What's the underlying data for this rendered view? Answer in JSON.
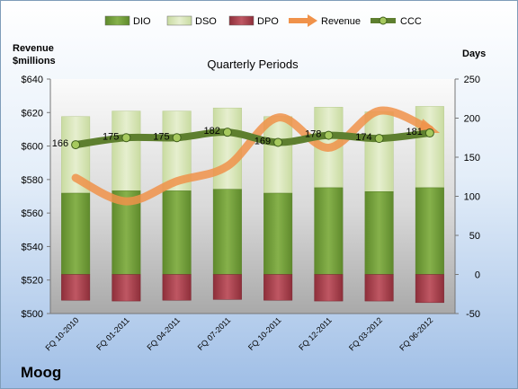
{
  "company": "Moog",
  "chart_data": {
    "type": "bar",
    "title": "Quarterly Periods",
    "left_axis_label": [
      "Revenue",
      "$millions"
    ],
    "right_axis_label": "Days",
    "left_ylim": [
      500,
      640
    ],
    "left_ticks": [
      "$500",
      "$520",
      "$540",
      "$560",
      "$580",
      "$600",
      "$620",
      "$640"
    ],
    "right_ylim": [
      -50,
      250
    ],
    "right_ticks": [
      "-50",
      "0",
      "50",
      "100",
      "150",
      "200",
      "250"
    ],
    "categories": [
      "FQ 10-2010",
      "FQ 01-2011",
      "FQ 04-2011",
      "FQ 07-2011",
      "FQ 10-2011",
      "FQ 12-2011",
      "FQ 03-2012",
      "FQ 06-2012"
    ],
    "legend": [
      "DIO",
      "DSO",
      "DPO",
      "Revenue",
      "CCC"
    ],
    "legend_placement": "top",
    "colors": {
      "DIO": "#77a33c",
      "DSO": "#d8e6b8",
      "DPO": "#b0434f",
      "Revenue": "#f0924a",
      "CCC": "#6a8f38"
    },
    "series": [
      {
        "name": "DIO",
        "axis": "right",
        "values": [
          104,
          107,
          107,
          109,
          104,
          111,
          106,
          111
        ]
      },
      {
        "name": "DSO",
        "axis": "right",
        "values": [
          98,
          102,
          102,
          104,
          98,
          103,
          102,
          104
        ]
      },
      {
        "name": "DPO",
        "axis": "right",
        "values": [
          -33,
          -34,
          -33,
          -32,
          -33,
          -34,
          -34,
          -36
        ]
      },
      {
        "name": "Revenue",
        "axis": "left",
        "values": [
          581,
          567,
          579,
          588,
          617,
          599,
          621,
          610
        ]
      },
      {
        "name": "CCC",
        "axis": "right",
        "values": [
          166,
          175,
          175,
          182,
          169,
          178,
          174,
          181
        ],
        "labels": [
          "166",
          "175",
          "175",
          "182",
          "169",
          "178",
          "174",
          "181"
        ]
      }
    ]
  }
}
